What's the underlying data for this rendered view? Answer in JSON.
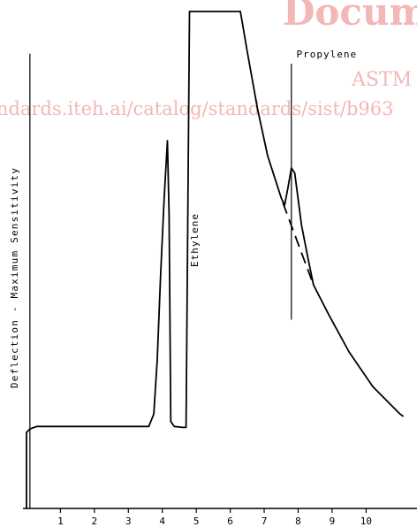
{
  "watermark": {
    "brand_fragment": "Docum",
    "org": "ASTM",
    "url_fragment": "ndards.iteh.ai/catalog/standards/sist/b963",
    "color": "#f2b7b7"
  },
  "chart_data": {
    "type": "line",
    "title": "",
    "xlabel": "",
    "ylabel": "Deflection - Maximum Sensitivity",
    "xlim": [
      0,
      11.5
    ],
    "ylim": [
      0,
      100
    ],
    "x_ticks": [
      1,
      2,
      3,
      4,
      5,
      6,
      7,
      8,
      9,
      10
    ],
    "x_tick_labels": [
      "1",
      "2",
      "3",
      "4",
      "5",
      "6",
      "7",
      "8",
      "9",
      "10"
    ],
    "grid": false,
    "series": [
      {
        "points": [
          [
            0.0,
            0.0
          ],
          [
            0.0,
            15.3
          ],
          [
            0.1,
            16.0
          ],
          [
            0.3,
            16.5
          ],
          [
            3.6,
            16.5
          ],
          [
            3.75,
            19.0
          ],
          [
            3.85,
            30.0
          ],
          [
            3.95,
            47.0
          ],
          [
            4.05,
            62.0
          ],
          [
            4.15,
            74.0
          ],
          [
            4.2,
            59.0
          ],
          [
            4.25,
            17.5
          ],
          [
            4.35,
            16.5
          ],
          [
            4.6,
            16.3
          ],
          [
            4.7,
            16.3
          ],
          [
            4.8,
            100.0
          ],
          [
            6.3,
            100.0
          ],
          [
            6.5,
            92.0
          ],
          [
            6.8,
            80.5
          ],
          [
            7.1,
            71.0
          ],
          [
            7.5,
            62.5
          ],
          [
            7.6,
            61.0
          ],
          [
            7.7,
            64.5
          ],
          [
            7.8,
            68.5
          ],
          [
            7.9,
            67.5
          ],
          [
            8.1,
            57.0
          ],
          [
            8.3,
            50.0
          ],
          [
            8.45,
            45.0
          ],
          [
            8.9,
            39.0
          ],
          [
            9.5,
            31.5
          ],
          [
            10.2,
            24.5
          ],
          [
            11.0,
            19.0
          ],
          [
            11.1,
            18.5
          ]
        ]
      }
    ],
    "extrapolated_baseline": {
      "style": "dashed",
      "points": [
        [
          7.55,
          61.5
        ],
        [
          8.45,
          45.0
        ]
      ]
    },
    "reference_lines": [
      {
        "x": 7.8,
        "y_from": 38.0,
        "y_to": 89.5
      },
      {
        "x": 0.1,
        "y_from": 0,
        "y_to": 91.5
      }
    ],
    "annotations": [
      {
        "text": "Ethylene",
        "x": 5.05,
        "y": 54,
        "orientation": "vertical"
      },
      {
        "text": "Propylene",
        "x": 7.95,
        "y": 91.5,
        "orientation": "horizontal"
      }
    ]
  }
}
